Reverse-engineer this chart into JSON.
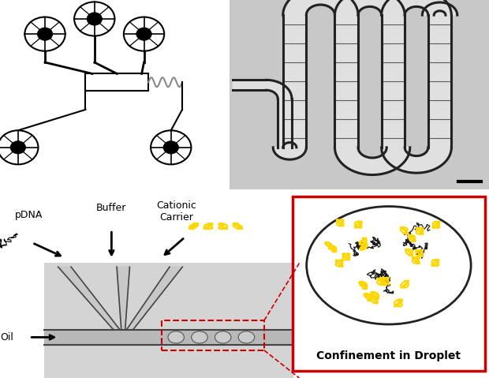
{
  "fig_width": 6.2,
  "fig_height": 4.79,
  "dpi": 100,
  "bg_color": "#ffffff",
  "bottom_left_labels": {
    "pdna": "pDNA",
    "buffer": "Buffer",
    "cationic": "Cationic\nCarrier",
    "oil": "Oil"
  },
  "confinement_label": "Confinement in Droplet",
  "label_fontsize": 9,
  "confinement_fontsize": 10,
  "red_box_color": "#cc0000",
  "yellow_color": "#FFD700"
}
